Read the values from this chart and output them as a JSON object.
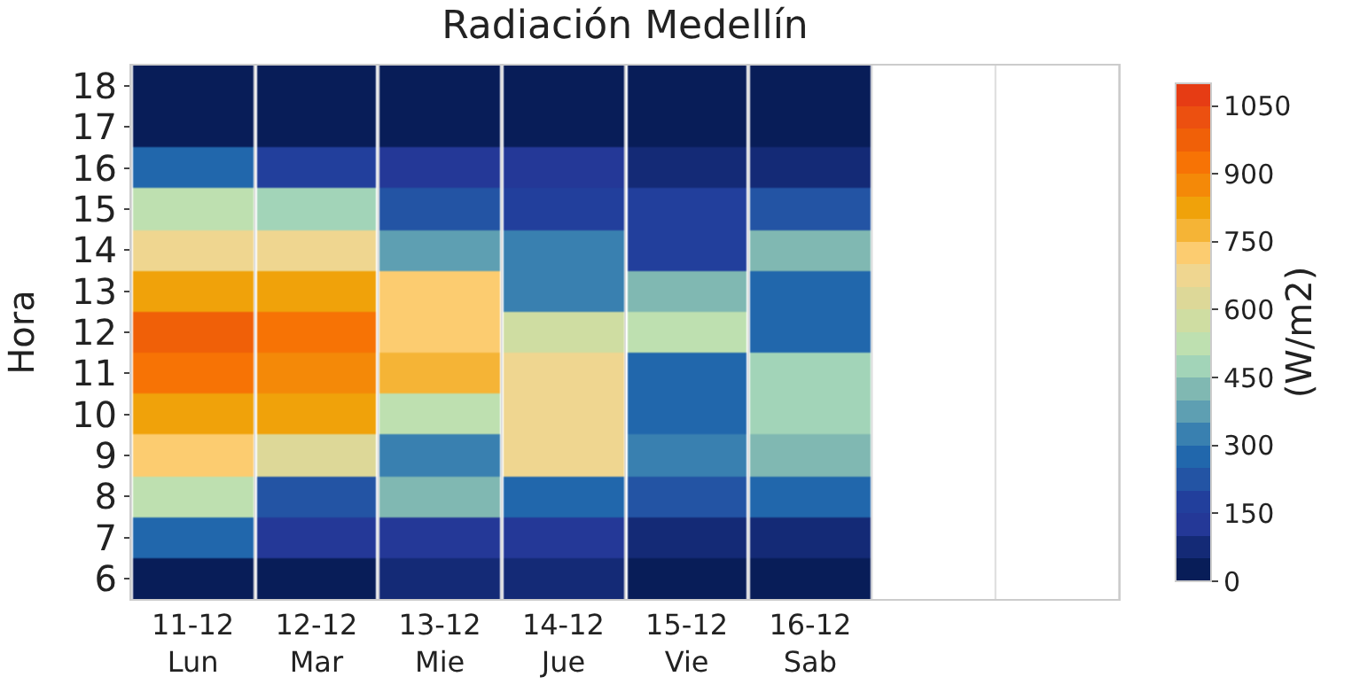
{
  "chart_data": {
    "type": "heatmap",
    "title": "Radiación Medellín",
    "ylabel": "Hora",
    "clabel": "(W/m2)",
    "categories": [
      "11-12\nLun",
      "12-12\nMar",
      "13-12\nMie",
      "14-12\nJue",
      "15-12\nVie",
      "16-12\nSab",
      null,
      null
    ],
    "y_categories": [
      "18",
      "17",
      "16",
      "15",
      "14",
      "13",
      "12",
      "11",
      "10",
      "9",
      "8",
      "7",
      "6"
    ],
    "cells": [
      [
        25,
        25,
        25,
        25,
        25,
        25,
        null,
        null
      ],
      [
        25,
        25,
        25,
        25,
        25,
        25,
        null,
        null
      ],
      [
        275,
        175,
        125,
        125,
        75,
        75,
        null,
        null
      ],
      [
        525,
        475,
        225,
        175,
        175,
        225,
        null,
        null
      ],
      [
        675,
        675,
        375,
        325,
        175,
        425,
        null,
        null
      ],
      [
        825,
        825,
        725,
        325,
        425,
        275,
        null,
        null
      ],
      [
        975,
        925,
        725,
        575,
        525,
        275,
        null,
        null
      ],
      [
        925,
        875,
        775,
        675,
        275,
        475,
        null,
        null
      ],
      [
        825,
        825,
        525,
        675,
        275,
        475,
        null,
        null
      ],
      [
        725,
        625,
        325,
        675,
        325,
        425,
        null,
        null
      ],
      [
        525,
        225,
        425,
        275,
        225,
        275,
        null,
        null
      ],
      [
        275,
        125,
        125,
        125,
        75,
        75,
        null,
        null
      ],
      [
        25,
        25,
        75,
        75,
        25,
        25,
        null,
        null
      ]
    ],
    "clim": [
      0,
      1100
    ],
    "cticks": [
      0,
      150,
      300,
      450,
      600,
      750,
      900,
      1050
    ],
    "grid": "x"
  }
}
